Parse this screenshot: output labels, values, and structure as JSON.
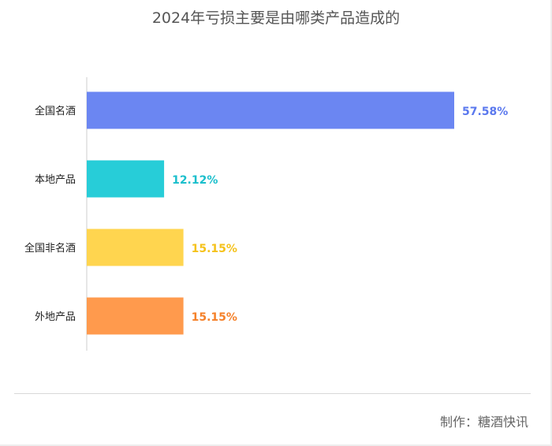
{
  "chart_data": {
    "type": "bar",
    "orientation": "horizontal",
    "title": "2024年亏损主要是由哪类产品造成的",
    "categories": [
      "全国名酒",
      "本地产品",
      "全国非名酒",
      "外地产品"
    ],
    "values": [
      57.58,
      12.12,
      15.15,
      15.15
    ],
    "value_labels": [
      "57.58%",
      "12.12%",
      "15.15%",
      "15.15%"
    ],
    "colors": [
      "#6b86f2",
      "#27cdd8",
      "#ffd54f",
      "#ff9a4d"
    ],
    "xlim": [
      0,
      60
    ],
    "grid": false,
    "legend": "none"
  },
  "footer": {
    "credit": "制作：糖酒快讯"
  }
}
